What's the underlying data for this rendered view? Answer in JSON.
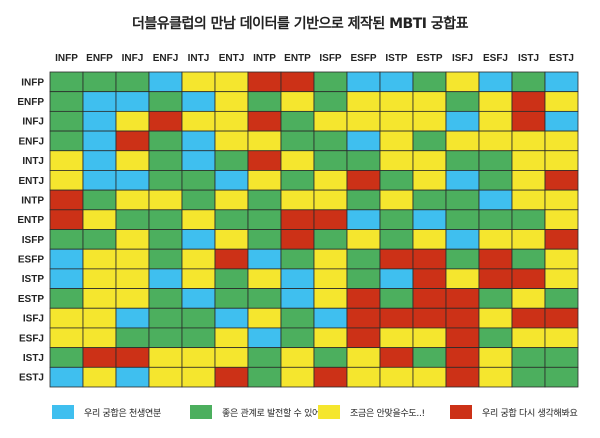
{
  "chart_data": {
    "type": "heatmap",
    "title": "더블유클럽의 만남 데이터를 기반으로 제작된 MBTI 궁합표",
    "columns": [
      "INFP",
      "ENFP",
      "INFJ",
      "ENFJ",
      "INTJ",
      "ENTJ",
      "INTP",
      "ENTP",
      "ISFP",
      "ESFP",
      "ISTP",
      "ESTP",
      "ISFJ",
      "ESFJ",
      "ISTJ",
      "ESTJ"
    ],
    "rows": [
      "INFP",
      "ENFP",
      "INFJ",
      "ENFJ",
      "INTJ",
      "ENTJ",
      "INTP",
      "ENTP",
      "ISFP",
      "ESFP",
      "ISTP",
      "ESTP",
      "ISFJ",
      "ESFJ",
      "ISTJ",
      "ESTJ"
    ],
    "levels": [
      {
        "key": "B",
        "label": "우리 궁합은 천생연분",
        "color": "#3fbfef"
      },
      {
        "key": "G",
        "label": "좋은 관계로 발전할 수 있어요",
        "color": "#4caf5e"
      },
      {
        "key": "Y",
        "label": "조금은 안맞을수도..!",
        "color": "#f5e62e"
      },
      {
        "key": "R",
        "label": "우리 궁합 다시 생각해봐요",
        "color": "#cc3117"
      }
    ],
    "cells": [
      [
        "G",
        "G",
        "G",
        "B",
        "Y",
        "Y",
        "R",
        "R",
        "G",
        "B",
        "B",
        "G",
        "Y",
        "B",
        "G",
        "B"
      ],
      [
        "G",
        "B",
        "B",
        "G",
        "B",
        "Y",
        "G",
        "Y",
        "G",
        "Y",
        "Y",
        "Y",
        "G",
        "Y",
        "R",
        "Y"
      ],
      [
        "G",
        "B",
        "Y",
        "R",
        "Y",
        "Y",
        "R",
        "G",
        "Y",
        "Y",
        "Y",
        "Y",
        "B",
        "Y",
        "R",
        "B"
      ],
      [
        "G",
        "B",
        "R",
        "G",
        "B",
        "Y",
        "Y",
        "G",
        "G",
        "B",
        "Y",
        "G",
        "Y",
        "Y",
        "Y",
        "Y"
      ],
      [
        "Y",
        "B",
        "Y",
        "G",
        "B",
        "G",
        "R",
        "Y",
        "G",
        "G",
        "Y",
        "Y",
        "G",
        "G",
        "Y",
        "Y"
      ],
      [
        "Y",
        "B",
        "B",
        "G",
        "G",
        "B",
        "Y",
        "G",
        "Y",
        "R",
        "G",
        "Y",
        "B",
        "G",
        "Y",
        "R"
      ],
      [
        "R",
        "G",
        "Y",
        "Y",
        "G",
        "Y",
        "G",
        "Y",
        "Y",
        "G",
        "Y",
        "G",
        "G",
        "B",
        "Y",
        "Y"
      ],
      [
        "R",
        "Y",
        "G",
        "G",
        "Y",
        "G",
        "G",
        "R",
        "R",
        "B",
        "G",
        "B",
        "G",
        "G",
        "G",
        "Y"
      ],
      [
        "G",
        "G",
        "Y",
        "G",
        "B",
        "Y",
        "G",
        "R",
        "G",
        "Y",
        "G",
        "Y",
        "B",
        "Y",
        "Y",
        "R"
      ],
      [
        "B",
        "Y",
        "Y",
        "G",
        "Y",
        "R",
        "B",
        "G",
        "Y",
        "G",
        "R",
        "R",
        "G",
        "R",
        "G",
        "Y"
      ],
      [
        "B",
        "Y",
        "Y",
        "B",
        "Y",
        "G",
        "Y",
        "B",
        "Y",
        "G",
        "B",
        "R",
        "Y",
        "R",
        "R",
        "Y"
      ],
      [
        "G",
        "Y",
        "Y",
        "G",
        "B",
        "G",
        "G",
        "B",
        "Y",
        "R",
        "G",
        "R",
        "R",
        "G",
        "Y",
        "G"
      ],
      [
        "Y",
        "Y",
        "B",
        "G",
        "G",
        "B",
        "Y",
        "G",
        "B",
        "R",
        "R",
        "R",
        "R",
        "Y",
        "R",
        "R"
      ],
      [
        "Y",
        "Y",
        "G",
        "G",
        "G",
        "Y",
        "B",
        "G",
        "Y",
        "R",
        "Y",
        "Y",
        "R",
        "G",
        "Y",
        "Y"
      ],
      [
        "G",
        "R",
        "R",
        "Y",
        "Y",
        "Y",
        "G",
        "Y",
        "G",
        "Y",
        "R",
        "G",
        "R",
        "Y",
        "G",
        "G"
      ],
      [
        "B",
        "Y",
        "B",
        "Y",
        "Y",
        "R",
        "G",
        "Y",
        "R",
        "Y",
        "Y",
        "Y",
        "R",
        "Y",
        "G",
        "G"
      ]
    ]
  }
}
